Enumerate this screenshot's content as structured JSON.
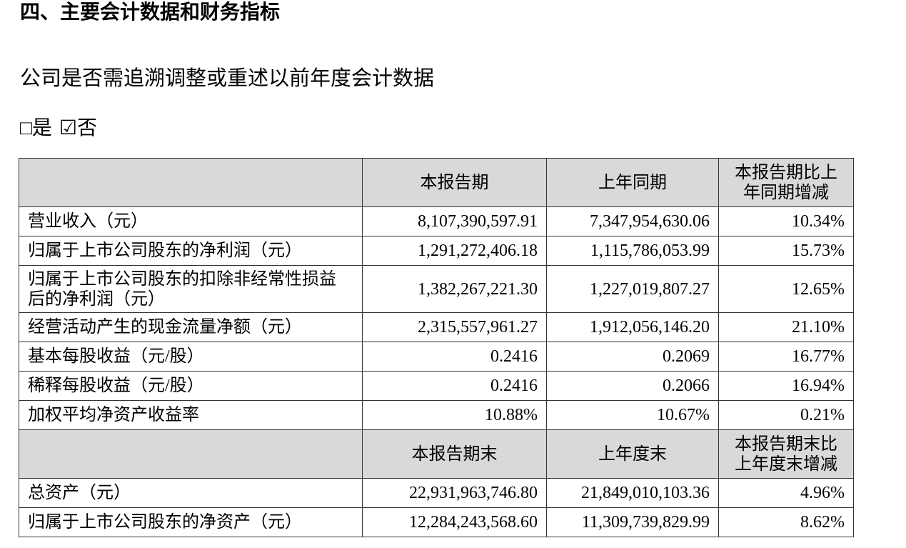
{
  "heading": "四、主要会计数据和财务指标",
  "question": "公司是否需追溯调整或重述以前年度会计数据",
  "options": [
    "□是",
    "☑否"
  ],
  "table": {
    "header1": [
      "本报告期",
      "上年同期",
      "本报告期比上年同期增减"
    ],
    "rows1": [
      [
        "营业收入（元）",
        "8,107,390,597.91",
        "7,347,954,630.06",
        "10.34%"
      ],
      [
        "归属于上市公司股东的净利润（元）",
        "1,291,272,406.18",
        "1,115,786,053.99",
        "15.73%"
      ],
      [
        "归属于上市公司股东的扣除非经常性损益后的净利润（元）",
        "1,382,267,221.30",
        "1,227,019,807.27",
        "12.65%"
      ],
      [
        "经营活动产生的现金流量净额（元）",
        "2,315,557,961.27",
        "1,912,056,146.20",
        "21.10%"
      ],
      [
        "基本每股收益（元/股）",
        "0.2416",
        "0.2069",
        "16.77%"
      ],
      [
        "稀释每股收益（元/股）",
        "0.2416",
        "0.2066",
        "16.94%"
      ],
      [
        "加权平均净资产收益率",
        "10.88%",
        "10.67%",
        "0.21%"
      ]
    ],
    "header2": [
      "本报告期末",
      "上年度末",
      "本报告期末比上年度末增减"
    ],
    "rows2": [
      [
        "总资产（元）",
        "22,931,963,746.80",
        "21,849,010,103.36",
        "4.96%"
      ],
      [
        "归属于上市公司股东的净资产（元）",
        "12,284,243,568.60",
        "11,309,739,829.99",
        "8.62%"
      ]
    ]
  }
}
